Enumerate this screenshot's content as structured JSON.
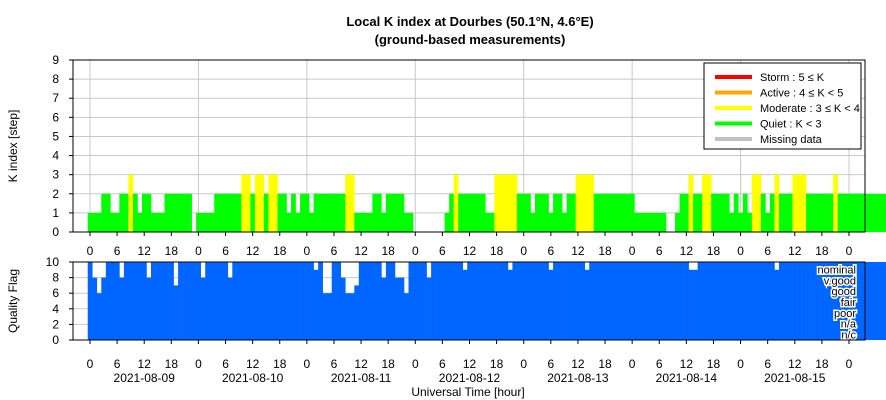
{
  "title_line1": "Local K index at Dourbes (50.1°N, 4.6°E)",
  "title_line2": "(ground-based measurements)",
  "xlabel": "Universal Time [hour]",
  "colors": {
    "storm": "#ff0000",
    "active": "#ffa500",
    "moderate": "#ffff00",
    "quiet": "#00ff00",
    "missing": "#c0c0c0",
    "quality": "#0066ff",
    "grid": "#c8c8c8"
  },
  "legend": {
    "position": "top-right",
    "items": [
      {
        "label": "Storm : 5 ≤ K",
        "color": "#ff0000"
      },
      {
        "label": "Active : 4 ≤ K < 5",
        "color": "#ffa500"
      },
      {
        "label": "Moderate : 3 ≤ K < 4",
        "color": "#ffff00"
      },
      {
        "label": "Quiet : K < 3",
        "color": "#00ff00"
      },
      {
        "label": "Missing data",
        "color": "#c0c0c0"
      }
    ]
  },
  "hour_ticks": [
    "0",
    "6",
    "12",
    "18",
    "0",
    "6",
    "12",
    "18",
    "0",
    "6",
    "12",
    "18",
    "0",
    "6",
    "12",
    "18",
    "0",
    "6",
    "12",
    "18",
    "0",
    "6",
    "12",
    "18",
    "0",
    "6",
    "12",
    "18",
    "0"
  ],
  "date_ticks": [
    "2021-08-09",
    "2021-08-10",
    "2021-08-11",
    "2021-08-12",
    "2021-08-13",
    "2021-08-14",
    "2021-08-15"
  ],
  "chart_data": [
    {
      "type": "bar",
      "ylabel": "K index [step]",
      "ylim": [
        0,
        9
      ],
      "yticks": [
        "0",
        "1",
        "2",
        "3",
        "4",
        "5",
        "6",
        "7",
        "8",
        "9"
      ],
      "grid": true,
      "step_minutes": 60,
      "x_start": "2021-08-09 00:00 UT",
      "values": [
        1,
        1,
        1,
        2,
        2,
        1,
        1,
        2,
        2,
        3,
        2,
        1,
        2,
        2,
        1,
        1,
        1,
        2,
        2,
        2,
        2,
        2,
        2,
        0,
        1,
        1,
        1,
        1,
        2,
        2,
        2,
        2,
        2,
        2,
        3,
        3,
        2,
        3,
        3,
        2,
        3,
        3,
        2,
        2,
        1,
        2,
        1,
        2,
        2,
        1,
        2,
        2,
        2,
        2,
        2,
        2,
        2,
        3,
        3,
        1,
        1,
        1,
        1,
        2,
        2,
        1,
        2,
        2,
        2,
        2,
        1,
        1,
        0,
        0,
        0,
        0,
        0,
        0,
        0,
        1,
        2,
        3,
        2,
        2,
        2,
        2,
        2,
        2,
        1,
        1,
        3,
        3,
        3,
        3,
        3,
        2,
        2,
        2,
        1,
        2,
        2,
        2,
        1,
        2,
        2,
        1,
        2,
        2,
        3,
        3,
        3,
        3,
        2,
        2,
        2,
        2,
        2,
        2,
        2,
        2,
        2,
        1,
        1,
        1,
        1,
        1,
        1,
        1,
        0,
        0,
        1,
        2,
        2,
        3,
        2,
        2,
        3,
        3,
        2,
        2,
        2,
        2,
        1,
        2,
        1,
        2,
        1,
        3,
        3,
        2,
        1,
        2,
        3,
        2,
        2,
        2,
        3,
        3,
        3,
        2,
        2,
        2,
        2,
        2,
        2,
        3,
        2,
        2,
        2,
        2,
        2,
        2,
        2,
        2,
        2,
        2,
        2
      ]
    },
    {
      "type": "bar",
      "ylabel": "Quality Flag",
      "ylim": [
        0,
        10
      ],
      "yticks": [
        "0",
        "2",
        "4",
        "6",
        "8",
        "10"
      ],
      "right_labels": [
        "nominal",
        "v.good",
        "good",
        "fair",
        "poor",
        "n/a",
        "n/c"
      ],
      "step_minutes": 60,
      "x_start": "2021-08-09 00:00 UT",
      "values": [
        10,
        8,
        6,
        8,
        10,
        10,
        10,
        8,
        10,
        10,
        10,
        10,
        10,
        8,
        10,
        10,
        10,
        10,
        10,
        7,
        10,
        10,
        10,
        10,
        10,
        8,
        10,
        10,
        10,
        10,
        10,
        8,
        10,
        10,
        10,
        10,
        10,
        10,
        10,
        10,
        10,
        10,
        10,
        10,
        10,
        10,
        10,
        10,
        10,
        10,
        9,
        10,
        6,
        6,
        10,
        10,
        8,
        6,
        6,
        7,
        10,
        10,
        10,
        10,
        10,
        8,
        10,
        10,
        8,
        8,
        6,
        10,
        10,
        10,
        10,
        8,
        10,
        10,
        10,
        10,
        10,
        10,
        10,
        9,
        10,
        10,
        10,
        10,
        10,
        10,
        10,
        10,
        10,
        9,
        10,
        10,
        10,
        10,
        10,
        10,
        10,
        10,
        9,
        10,
        10,
        10,
        10,
        10,
        10,
        10,
        9,
        10,
        10,
        10,
        10,
        10,
        10,
        10,
        10,
        10,
        10,
        10,
        10,
        10,
        10,
        10,
        10,
        10,
        10,
        10,
        10,
        10,
        10,
        9,
        9,
        10,
        10,
        10,
        10,
        10,
        10,
        10,
        10,
        10,
        10,
        10,
        10,
        10,
        10,
        10,
        10,
        10,
        9,
        10,
        10,
        10,
        10,
        10,
        10,
        10,
        10,
        10,
        10,
        10,
        10,
        10,
        10,
        10,
        10,
        10,
        10,
        10,
        10,
        10,
        10,
        10,
        10
      ]
    }
  ]
}
